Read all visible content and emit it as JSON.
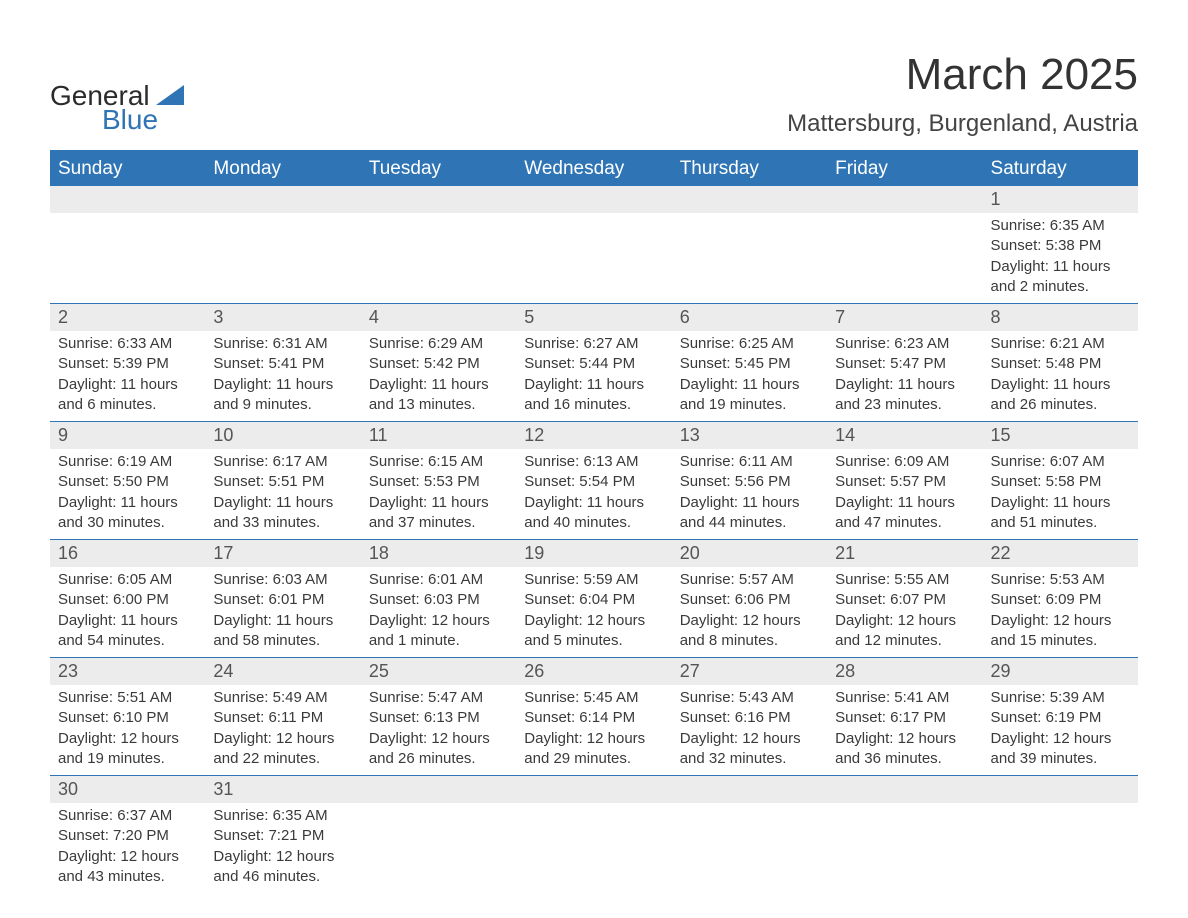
{
  "brand": {
    "word1": "General",
    "word2": "Blue",
    "text_color": "#2b2b2b",
    "accent_color": "#2f74b5"
  },
  "title": "March 2025",
  "location": "Mattersburg, Burgenland, Austria",
  "colors": {
    "header_bg": "#2f74b5",
    "header_text": "#ffffff",
    "daynum_bg": "#ececec",
    "body_text": "#3a3a3a",
    "row_border": "#2f74b5",
    "page_bg": "#ffffff"
  },
  "typography": {
    "title_fontsize_pt": 33,
    "location_fontsize_pt": 18,
    "weekday_fontsize_pt": 14,
    "daynum_fontsize_pt": 13,
    "details_fontsize_pt": 11,
    "font_family": "Arial"
  },
  "layout": {
    "columns": 7,
    "weeks": 6,
    "first_day_column_index": 6
  },
  "weekdays": [
    "Sunday",
    "Monday",
    "Tuesday",
    "Wednesday",
    "Thursday",
    "Friday",
    "Saturday"
  ],
  "days": [
    {
      "n": "1",
      "sunrise": "Sunrise: 6:35 AM",
      "sunset": "Sunset: 5:38 PM",
      "dl1": "Daylight: 11 hours",
      "dl2": "and 2 minutes."
    },
    {
      "n": "2",
      "sunrise": "Sunrise: 6:33 AM",
      "sunset": "Sunset: 5:39 PM",
      "dl1": "Daylight: 11 hours",
      "dl2": "and 6 minutes."
    },
    {
      "n": "3",
      "sunrise": "Sunrise: 6:31 AM",
      "sunset": "Sunset: 5:41 PM",
      "dl1": "Daylight: 11 hours",
      "dl2": "and 9 minutes."
    },
    {
      "n": "4",
      "sunrise": "Sunrise: 6:29 AM",
      "sunset": "Sunset: 5:42 PM",
      "dl1": "Daylight: 11 hours",
      "dl2": "and 13 minutes."
    },
    {
      "n": "5",
      "sunrise": "Sunrise: 6:27 AM",
      "sunset": "Sunset: 5:44 PM",
      "dl1": "Daylight: 11 hours",
      "dl2": "and 16 minutes."
    },
    {
      "n": "6",
      "sunrise": "Sunrise: 6:25 AM",
      "sunset": "Sunset: 5:45 PM",
      "dl1": "Daylight: 11 hours",
      "dl2": "and 19 minutes."
    },
    {
      "n": "7",
      "sunrise": "Sunrise: 6:23 AM",
      "sunset": "Sunset: 5:47 PM",
      "dl1": "Daylight: 11 hours",
      "dl2": "and 23 minutes."
    },
    {
      "n": "8",
      "sunrise": "Sunrise: 6:21 AM",
      "sunset": "Sunset: 5:48 PM",
      "dl1": "Daylight: 11 hours",
      "dl2": "and 26 minutes."
    },
    {
      "n": "9",
      "sunrise": "Sunrise: 6:19 AM",
      "sunset": "Sunset: 5:50 PM",
      "dl1": "Daylight: 11 hours",
      "dl2": "and 30 minutes."
    },
    {
      "n": "10",
      "sunrise": "Sunrise: 6:17 AM",
      "sunset": "Sunset: 5:51 PM",
      "dl1": "Daylight: 11 hours",
      "dl2": "and 33 minutes."
    },
    {
      "n": "11",
      "sunrise": "Sunrise: 6:15 AM",
      "sunset": "Sunset: 5:53 PM",
      "dl1": "Daylight: 11 hours",
      "dl2": "and 37 minutes."
    },
    {
      "n": "12",
      "sunrise": "Sunrise: 6:13 AM",
      "sunset": "Sunset: 5:54 PM",
      "dl1": "Daylight: 11 hours",
      "dl2": "and 40 minutes."
    },
    {
      "n": "13",
      "sunrise": "Sunrise: 6:11 AM",
      "sunset": "Sunset: 5:56 PM",
      "dl1": "Daylight: 11 hours",
      "dl2": "and 44 minutes."
    },
    {
      "n": "14",
      "sunrise": "Sunrise: 6:09 AM",
      "sunset": "Sunset: 5:57 PM",
      "dl1": "Daylight: 11 hours",
      "dl2": "and 47 minutes."
    },
    {
      "n": "15",
      "sunrise": "Sunrise: 6:07 AM",
      "sunset": "Sunset: 5:58 PM",
      "dl1": "Daylight: 11 hours",
      "dl2": "and 51 minutes."
    },
    {
      "n": "16",
      "sunrise": "Sunrise: 6:05 AM",
      "sunset": "Sunset: 6:00 PM",
      "dl1": "Daylight: 11 hours",
      "dl2": "and 54 minutes."
    },
    {
      "n": "17",
      "sunrise": "Sunrise: 6:03 AM",
      "sunset": "Sunset: 6:01 PM",
      "dl1": "Daylight: 11 hours",
      "dl2": "and 58 minutes."
    },
    {
      "n": "18",
      "sunrise": "Sunrise: 6:01 AM",
      "sunset": "Sunset: 6:03 PM",
      "dl1": "Daylight: 12 hours",
      "dl2": "and 1 minute."
    },
    {
      "n": "19",
      "sunrise": "Sunrise: 5:59 AM",
      "sunset": "Sunset: 6:04 PM",
      "dl1": "Daylight: 12 hours",
      "dl2": "and 5 minutes."
    },
    {
      "n": "20",
      "sunrise": "Sunrise: 5:57 AM",
      "sunset": "Sunset: 6:06 PM",
      "dl1": "Daylight: 12 hours",
      "dl2": "and 8 minutes."
    },
    {
      "n": "21",
      "sunrise": "Sunrise: 5:55 AM",
      "sunset": "Sunset: 6:07 PM",
      "dl1": "Daylight: 12 hours",
      "dl2": "and 12 minutes."
    },
    {
      "n": "22",
      "sunrise": "Sunrise: 5:53 AM",
      "sunset": "Sunset: 6:09 PM",
      "dl1": "Daylight: 12 hours",
      "dl2": "and 15 minutes."
    },
    {
      "n": "23",
      "sunrise": "Sunrise: 5:51 AM",
      "sunset": "Sunset: 6:10 PM",
      "dl1": "Daylight: 12 hours",
      "dl2": "and 19 minutes."
    },
    {
      "n": "24",
      "sunrise": "Sunrise: 5:49 AM",
      "sunset": "Sunset: 6:11 PM",
      "dl1": "Daylight: 12 hours",
      "dl2": "and 22 minutes."
    },
    {
      "n": "25",
      "sunrise": "Sunrise: 5:47 AM",
      "sunset": "Sunset: 6:13 PM",
      "dl1": "Daylight: 12 hours",
      "dl2": "and 26 minutes."
    },
    {
      "n": "26",
      "sunrise": "Sunrise: 5:45 AM",
      "sunset": "Sunset: 6:14 PM",
      "dl1": "Daylight: 12 hours",
      "dl2": "and 29 minutes."
    },
    {
      "n": "27",
      "sunrise": "Sunrise: 5:43 AM",
      "sunset": "Sunset: 6:16 PM",
      "dl1": "Daylight: 12 hours",
      "dl2": "and 32 minutes."
    },
    {
      "n": "28",
      "sunrise": "Sunrise: 5:41 AM",
      "sunset": "Sunset: 6:17 PM",
      "dl1": "Daylight: 12 hours",
      "dl2": "and 36 minutes."
    },
    {
      "n": "29",
      "sunrise": "Sunrise: 5:39 AM",
      "sunset": "Sunset: 6:19 PM",
      "dl1": "Daylight: 12 hours",
      "dl2": "and 39 minutes."
    },
    {
      "n": "30",
      "sunrise": "Sunrise: 6:37 AM",
      "sunset": "Sunset: 7:20 PM",
      "dl1": "Daylight: 12 hours",
      "dl2": "and 43 minutes."
    },
    {
      "n": "31",
      "sunrise": "Sunrise: 6:35 AM",
      "sunset": "Sunset: 7:21 PM",
      "dl1": "Daylight: 12 hours",
      "dl2": "and 46 minutes."
    }
  ]
}
